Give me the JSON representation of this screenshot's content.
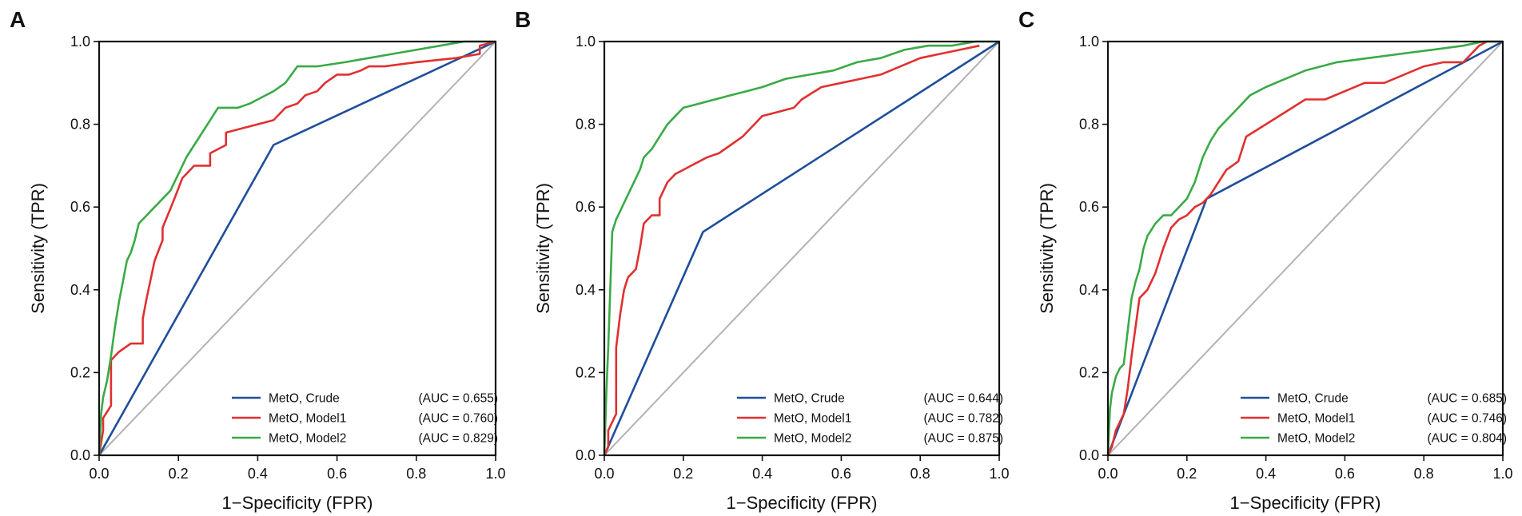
{
  "chart_data": [
    {
      "panel": "A",
      "type": "line",
      "xlabel": "1−Specificity (FPR)",
      "ylabel": "Sensitivity (TPR)",
      "xlim": [
        0.0,
        1.0
      ],
      "ylim": [
        0.0,
        1.0
      ],
      "xticks": [
        "0.0",
        "0.2",
        "0.4",
        "0.6",
        "0.8",
        "1.0"
      ],
      "yticks": [
        "0.0",
        "0.2",
        "0.4",
        "0.6",
        "0.8",
        "1.0"
      ],
      "grid": false,
      "legend_position": "bottom-right",
      "reference_line": {
        "x": [
          0,
          1
        ],
        "y": [
          0,
          1
        ],
        "color": "#b3b3b3"
      },
      "series": [
        {
          "name": "MetO, Crude",
          "auc": "(AUC = 0.655)",
          "color": "#1f4e9a",
          "x": [
            0,
            0.44,
            1.0
          ],
          "y": [
            0,
            0.75,
            1.0
          ]
        },
        {
          "name": "MetO, Model1",
          "auc": "(AUC = 0.760)",
          "color": "#e03030",
          "x": [
            0,
            0.01,
            0.01,
            0.03,
            0.03,
            0.05,
            0.05,
            0.08,
            0.08,
            0.11,
            0.11,
            0.12,
            0.14,
            0.16,
            0.16,
            0.19,
            0.21,
            0.23,
            0.24,
            0.26,
            0.28,
            0.28,
            0.32,
            0.32,
            0.36,
            0.4,
            0.44,
            0.47,
            0.5,
            0.52,
            0.55,
            0.57,
            0.6,
            0.63,
            0.66,
            0.68,
            0.72,
            0.8,
            0.9,
            0.96,
            0.96,
            1.0
          ],
          "y": [
            0,
            0.06,
            0.09,
            0.12,
            0.23,
            0.25,
            0.25,
            0.27,
            0.27,
            0.27,
            0.33,
            0.38,
            0.47,
            0.52,
            0.55,
            0.62,
            0.67,
            0.69,
            0.7,
            0.7,
            0.7,
            0.73,
            0.75,
            0.78,
            0.79,
            0.8,
            0.81,
            0.84,
            0.85,
            0.87,
            0.88,
            0.9,
            0.92,
            0.92,
            0.93,
            0.94,
            0.94,
            0.95,
            0.96,
            0.97,
            0.99,
            1.0
          ]
        },
        {
          "name": "MetO, Model2",
          "auc": "(AUC = 0.829)",
          "color": "#3aaa46",
          "x": [
            0,
            0.005,
            0.01,
            0.02,
            0.03,
            0.04,
            0.05,
            0.06,
            0.07,
            0.08,
            0.09,
            0.1,
            0.12,
            0.14,
            0.16,
            0.17,
            0.18,
            0.19,
            0.2,
            0.22,
            0.24,
            0.26,
            0.28,
            0.3,
            0.35,
            0.38,
            0.4,
            0.44,
            0.47,
            0.5,
            0.55,
            0.62,
            0.68,
            0.74,
            0.8,
            0.86,
            0.92,
            0.97,
            1.0
          ],
          "y": [
            0,
            0.1,
            0.14,
            0.18,
            0.24,
            0.31,
            0.37,
            0.42,
            0.47,
            0.49,
            0.52,
            0.56,
            0.58,
            0.6,
            0.62,
            0.63,
            0.64,
            0.66,
            0.68,
            0.72,
            0.75,
            0.78,
            0.81,
            0.84,
            0.84,
            0.85,
            0.86,
            0.88,
            0.9,
            0.94,
            0.94,
            0.95,
            0.96,
            0.97,
            0.98,
            0.99,
            1.0,
            1.0,
            1.0
          ]
        }
      ]
    },
    {
      "panel": "B",
      "type": "line",
      "xlabel": "1−Specificity (FPR)",
      "ylabel": "Sensitivity (TPR)",
      "xlim": [
        0.0,
        1.0
      ],
      "ylim": [
        0.0,
        1.0
      ],
      "xticks": [
        "0.0",
        "0.2",
        "0.4",
        "0.6",
        "0.8",
        "1.0"
      ],
      "yticks": [
        "0.0",
        "0.2",
        "0.4",
        "0.6",
        "0.8",
        "1.0"
      ],
      "grid": false,
      "legend_position": "bottom-right",
      "reference_line": {
        "x": [
          0,
          1
        ],
        "y": [
          0,
          1
        ],
        "color": "#b3b3b3"
      },
      "series": [
        {
          "name": "MetO, Crude",
          "auc": "(AUC = 0.644)",
          "color": "#1f4e9a",
          "x": [
            0,
            0.25,
            1.0
          ],
          "y": [
            0,
            0.54,
            1.0
          ]
        },
        {
          "name": "MetO, Model1",
          "auc": "(AUC = 0.782)",
          "color": "#e03030",
          "x": [
            0,
            0.01,
            0.01,
            0.03,
            0.03,
            0.04,
            0.05,
            0.06,
            0.08,
            0.09,
            0.1,
            0.12,
            0.14,
            0.14,
            0.16,
            0.18,
            0.2,
            0.22,
            0.24,
            0.26,
            0.29,
            0.32,
            0.35,
            0.38,
            0.4,
            0.44,
            0.48,
            0.5,
            0.55,
            0.6,
            0.65,
            0.7,
            0.75,
            0.8,
            0.85,
            0.9,
            0.95
          ],
          "y": [
            0,
            0.02,
            0.06,
            0.1,
            0.26,
            0.34,
            0.4,
            0.43,
            0.45,
            0.5,
            0.56,
            0.58,
            0.58,
            0.62,
            0.66,
            0.68,
            0.69,
            0.7,
            0.71,
            0.72,
            0.73,
            0.75,
            0.77,
            0.8,
            0.82,
            0.83,
            0.84,
            0.86,
            0.89,
            0.9,
            0.91,
            0.92,
            0.94,
            0.96,
            0.97,
            0.98,
            0.99
          ]
        },
        {
          "name": "MetO, Model2",
          "auc": "(AUC = 0.875)",
          "color": "#3aaa46",
          "x": [
            0,
            0.005,
            0.01,
            0.015,
            0.02,
            0.03,
            0.04,
            0.05,
            0.06,
            0.07,
            0.08,
            0.09,
            0.1,
            0.12,
            0.14,
            0.16,
            0.18,
            0.2,
            0.24,
            0.28,
            0.32,
            0.36,
            0.4,
            0.46,
            0.52,
            0.58,
            0.64,
            0.7,
            0.76,
            0.82,
            0.88,
            0.94,
            1.0
          ],
          "y": [
            0,
            0.15,
            0.26,
            0.4,
            0.54,
            0.57,
            0.59,
            0.61,
            0.63,
            0.65,
            0.67,
            0.69,
            0.72,
            0.74,
            0.77,
            0.8,
            0.82,
            0.84,
            0.85,
            0.86,
            0.87,
            0.88,
            0.89,
            0.91,
            0.92,
            0.93,
            0.95,
            0.96,
            0.98,
            0.99,
            0.99,
            1.0,
            1.0
          ]
        }
      ]
    },
    {
      "panel": "C",
      "type": "line",
      "xlabel": "1−Specificity (FPR)",
      "ylabel": "Sensitivity (TPR)",
      "xlim": [
        0.0,
        1.0
      ],
      "ylim": [
        0.0,
        1.0
      ],
      "xticks": [
        "0.0",
        "0.2",
        "0.4",
        "0.6",
        "0.8",
        "1.0"
      ],
      "yticks": [
        "0.0",
        "0.2",
        "0.4",
        "0.6",
        "0.8",
        "1.0"
      ],
      "grid": false,
      "legend_position": "bottom-right",
      "reference_line": {
        "x": [
          0,
          1
        ],
        "y": [
          0,
          1
        ],
        "color": "#b3b3b3"
      },
      "series": [
        {
          "name": "MetO, Crude",
          "auc": "(AUC = 0.685)",
          "color": "#1f4e9a",
          "x": [
            0,
            0.25,
            1.0
          ],
          "y": [
            0,
            0.62,
            1.0
          ]
        },
        {
          "name": "MetO, Model1",
          "auc": "(AUC = 0.746)",
          "color": "#e03030",
          "x": [
            0,
            0.01,
            0.02,
            0.04,
            0.05,
            0.06,
            0.08,
            0.1,
            0.12,
            0.14,
            0.16,
            0.18,
            0.2,
            0.22,
            0.24,
            0.26,
            0.28,
            0.3,
            0.33,
            0.35,
            0.4,
            0.45,
            0.5,
            0.55,
            0.6,
            0.65,
            0.7,
            0.75,
            0.8,
            0.85,
            0.9,
            0.94,
            0.96,
            1.0
          ],
          "y": [
            0,
            0.02,
            0.06,
            0.1,
            0.16,
            0.24,
            0.38,
            0.4,
            0.44,
            0.5,
            0.55,
            0.57,
            0.58,
            0.6,
            0.61,
            0.63,
            0.66,
            0.69,
            0.71,
            0.77,
            0.8,
            0.83,
            0.86,
            0.86,
            0.88,
            0.9,
            0.9,
            0.92,
            0.94,
            0.95,
            0.95,
            0.99,
            1.0,
            1.0
          ]
        },
        {
          "name": "MetO, Model2",
          "auc": "(AUC = 0.804)",
          "color": "#3aaa46",
          "x": [
            0,
            0.005,
            0.01,
            0.02,
            0.03,
            0.04,
            0.05,
            0.06,
            0.07,
            0.08,
            0.09,
            0.1,
            0.12,
            0.14,
            0.16,
            0.18,
            0.2,
            0.22,
            0.24,
            0.26,
            0.28,
            0.3,
            0.32,
            0.34,
            0.36,
            0.4,
            0.45,
            0.5,
            0.58,
            0.66,
            0.74,
            0.82,
            0.9,
            0.95,
            1.0
          ],
          "y": [
            0,
            0.11,
            0.15,
            0.19,
            0.21,
            0.22,
            0.3,
            0.38,
            0.42,
            0.45,
            0.5,
            0.53,
            0.56,
            0.58,
            0.58,
            0.6,
            0.62,
            0.66,
            0.72,
            0.76,
            0.79,
            0.81,
            0.83,
            0.85,
            0.87,
            0.89,
            0.91,
            0.93,
            0.95,
            0.96,
            0.97,
            0.98,
            0.99,
            1.0,
            1.0
          ]
        }
      ]
    }
  ]
}
